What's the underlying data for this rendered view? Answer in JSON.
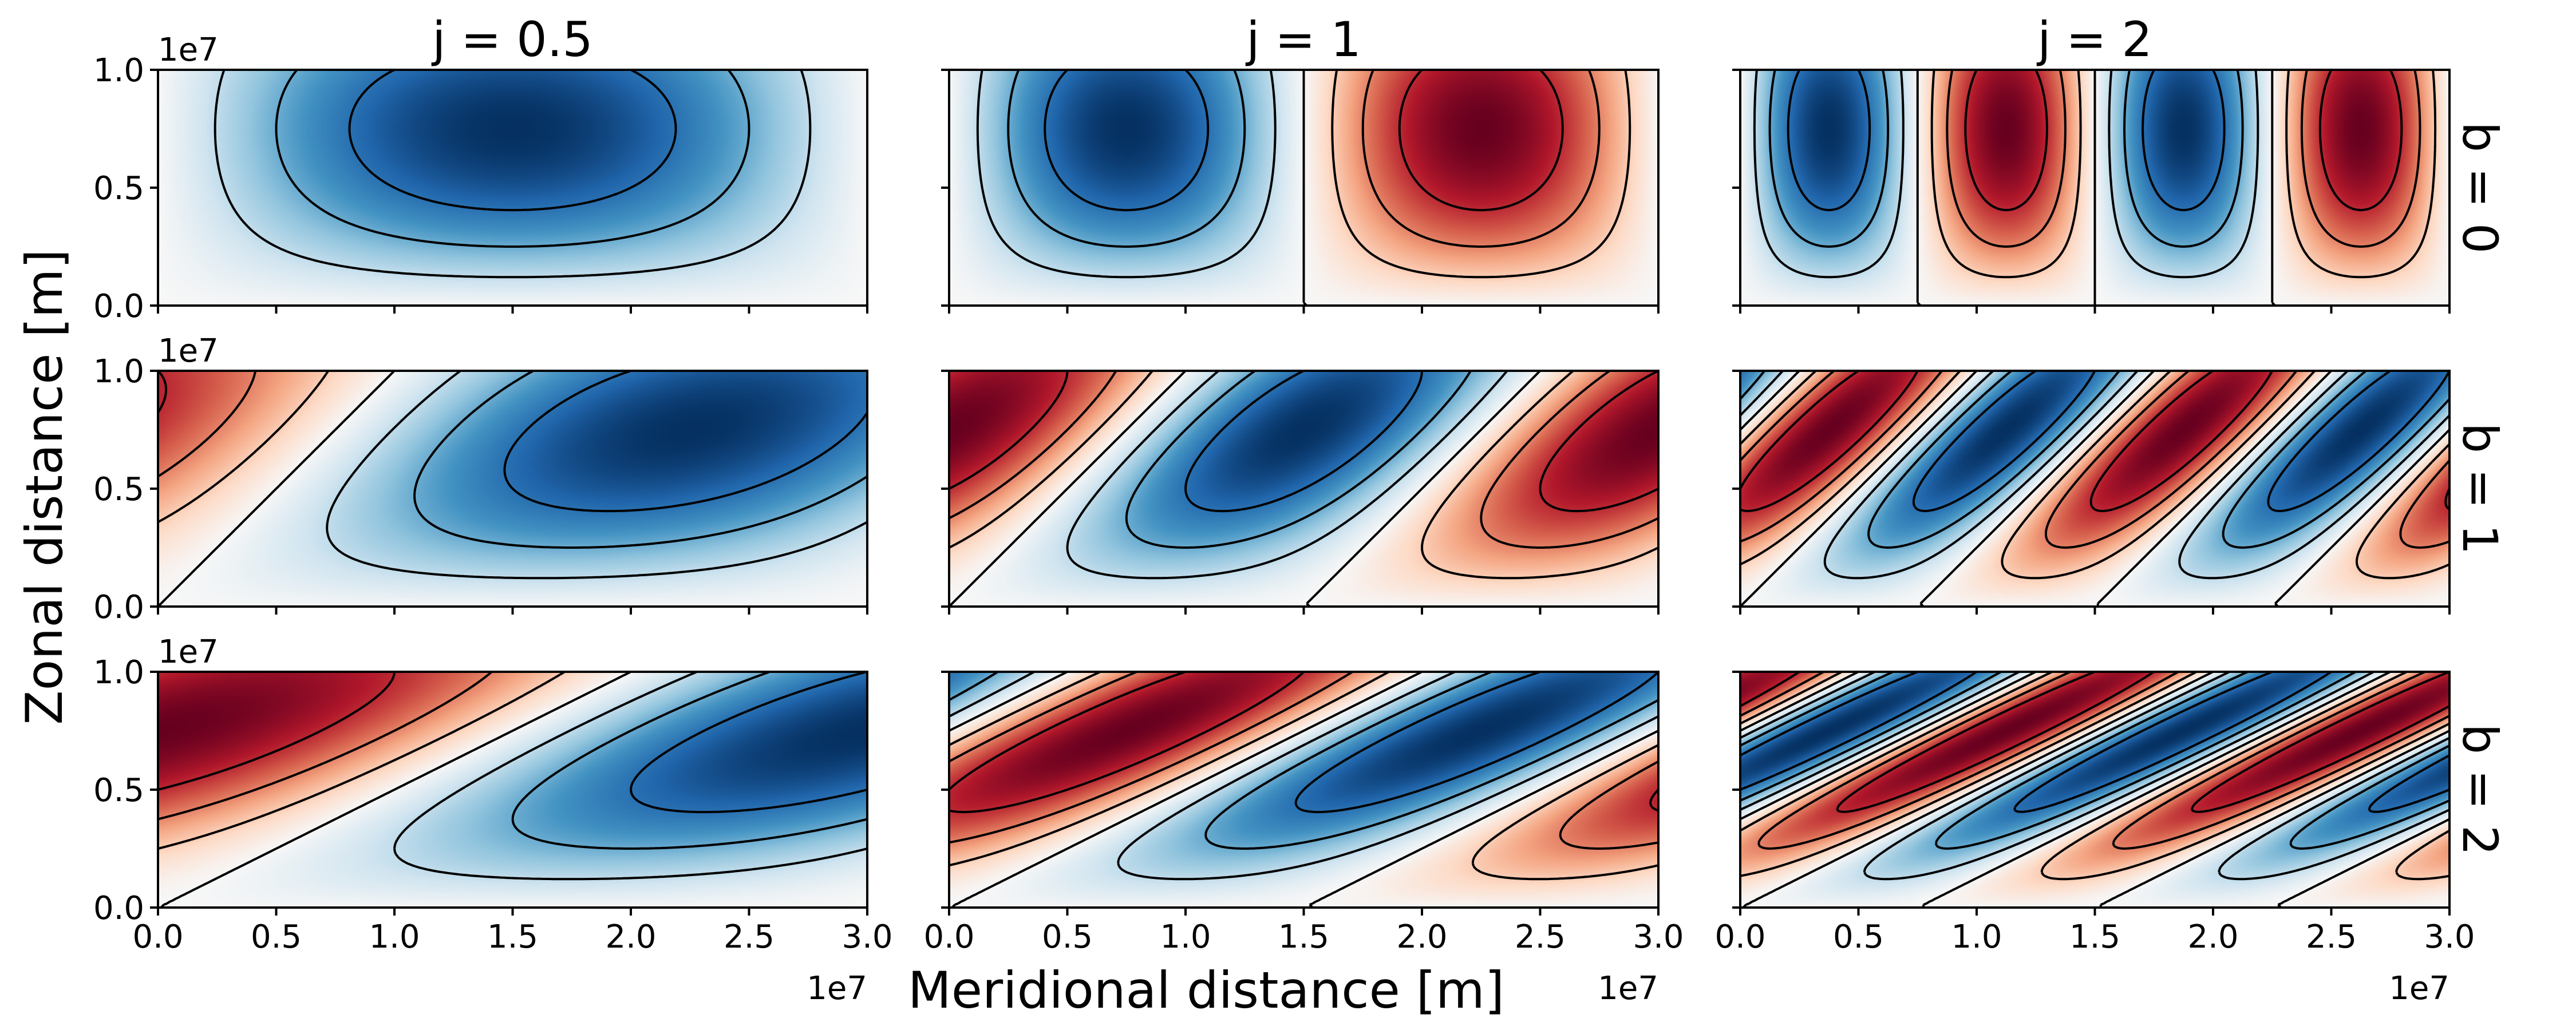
{
  "chart_data": {
    "type": "heatmap",
    "colormap": "RdBu_r",
    "xlabel": "Meridional distance [m]",
    "ylabel": "Zonal distance [m]",
    "xlim": [
      0,
      30000000
    ],
    "ylim": [
      0,
      10000000
    ],
    "x_ticks": [
      0,
      5000000,
      10000000,
      15000000,
      20000000,
      25000000,
      30000000
    ],
    "x_tick_labels": [
      "0.0",
      "0.5",
      "1.0",
      "1.5",
      "2.0",
      "2.5",
      "3.0"
    ],
    "y_ticks": [
      0,
      5000000,
      10000000
    ],
    "y_tick_labels": [
      "0.0",
      "0.5",
      "1.0"
    ],
    "x_offset_label": "1e7",
    "y_offset_label": "1e7",
    "contour_levels": [
      -0.75,
      -0.5,
      -0.25,
      0,
      0.25,
      0.5,
      0.75
    ],
    "negative_contour_style": "solid",
    "positive_contour_style": "dashed",
    "columns": [
      {
        "j": 0.5,
        "title": "j = 0.5"
      },
      {
        "j": 1,
        "title": "j = 1"
      },
      {
        "j": 2,
        "title": "j = 2"
      }
    ],
    "rows": [
      {
        "b": 0,
        "title": "b = 0"
      },
      {
        "b": 1,
        "title": "b = 1"
      },
      {
        "b": 2,
        "title": "b = 2"
      }
    ],
    "field": "-sin(pi*y/L) * sin(pi*j*(x - b*y)/L), L = 1.5e7"
  }
}
